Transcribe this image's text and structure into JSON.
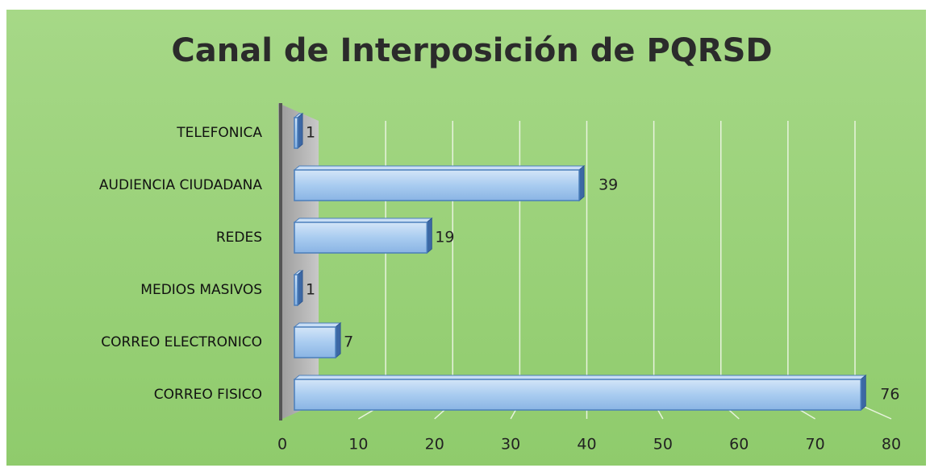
{
  "chart_data": {
    "type": "bar",
    "orientation": "horizontal",
    "title": "Canal de Interposición de PQRSD",
    "categories": [
      "TELEFONICA",
      "AUDIENCIA CIUDADANA",
      "REDES",
      "MEDIOS MASIVOS",
      "CORREO ELECTRONICO",
      "CORREO FISICO"
    ],
    "values": [
      1,
      39,
      19,
      1,
      7,
      76
    ],
    "color": "#9dc3ec",
    "xlim": [
      0,
      80
    ],
    "xticks": [
      0,
      10,
      20,
      30,
      40,
      50,
      60,
      70,
      80
    ],
    "grid": true
  }
}
